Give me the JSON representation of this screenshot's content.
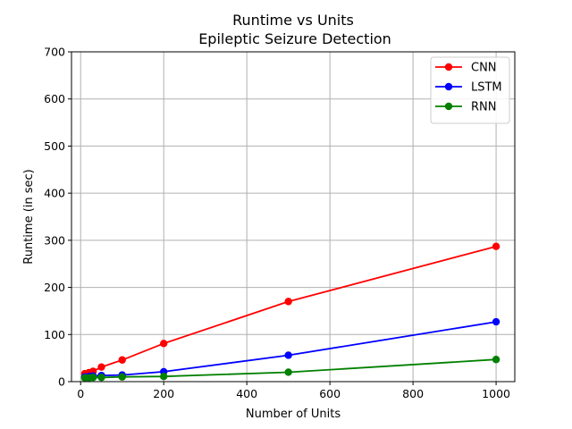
{
  "chart_data": {
    "type": "line",
    "title": "Runtime vs Units",
    "subtitle": "Epileptic Seizure Detection",
    "xlabel": "Number of Units",
    "ylabel": "Runtime (in sec)",
    "xlim": [
      -22,
      1045
    ],
    "ylim": [
      0,
      700
    ],
    "xticks": [
      0,
      200,
      400,
      600,
      800,
      1000
    ],
    "yticks": [
      0,
      100,
      200,
      300,
      400,
      500,
      600,
      700
    ],
    "grid": true,
    "legend_position": "top-right",
    "series": [
      {
        "name": "CNN",
        "color": "#ff0000",
        "x": [
          10,
          20,
          30,
          50,
          100,
          200,
          500,
          1000
        ],
        "y": [
          17,
          19,
          22,
          31,
          46,
          81,
          170,
          287
        ]
      },
      {
        "name": "LSTM",
        "color": "#0000ff",
        "x": [
          10,
          20,
          30,
          50,
          100,
          200,
          500,
          1000
        ],
        "y": [
          10,
          11,
          12,
          13,
          14,
          21,
          56,
          127
        ]
      },
      {
        "name": "RNN",
        "color": "#008000",
        "x": [
          10,
          20,
          30,
          50,
          100,
          200,
          500,
          1000
        ],
        "y": [
          8,
          8,
          9,
          9,
          10,
          11,
          20,
          47
        ]
      }
    ]
  }
}
